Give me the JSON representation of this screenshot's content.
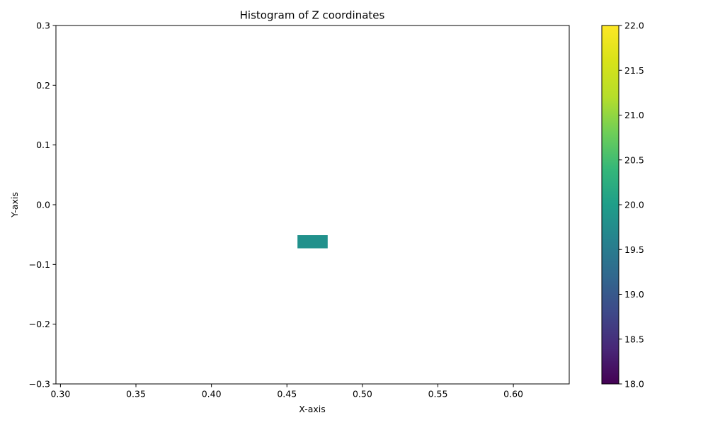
{
  "chart_data": {
    "type": "heatmap",
    "title": "Histogram of Z coordinates",
    "xlabel": "X-axis",
    "ylabel": "Y-axis",
    "xlim": [
      0.297,
      0.637
    ],
    "ylim": [
      -0.3,
      0.3
    ],
    "x_ticks": [
      "0.30",
      "0.35",
      "0.40",
      "0.45",
      "0.50",
      "0.55",
      "0.60"
    ],
    "y_ticks": [
      "−0.3",
      "−0.2",
      "−0.1",
      "0.0",
      "0.1",
      "0.2",
      "0.3"
    ],
    "grid": false,
    "colormap": "viridis",
    "colorbar": {
      "range": [
        18.0,
        22.0
      ],
      "ticks": [
        "18.0",
        "18.5",
        "19.0",
        "19.5",
        "20.0",
        "20.5",
        "21.0",
        "21.5",
        "22.0"
      ]
    },
    "cells": [
      {
        "x0": 0.457,
        "x1": 0.477,
        "y0": -0.073,
        "y1": -0.051,
        "value": 20.0,
        "color": "#21918c"
      }
    ]
  }
}
